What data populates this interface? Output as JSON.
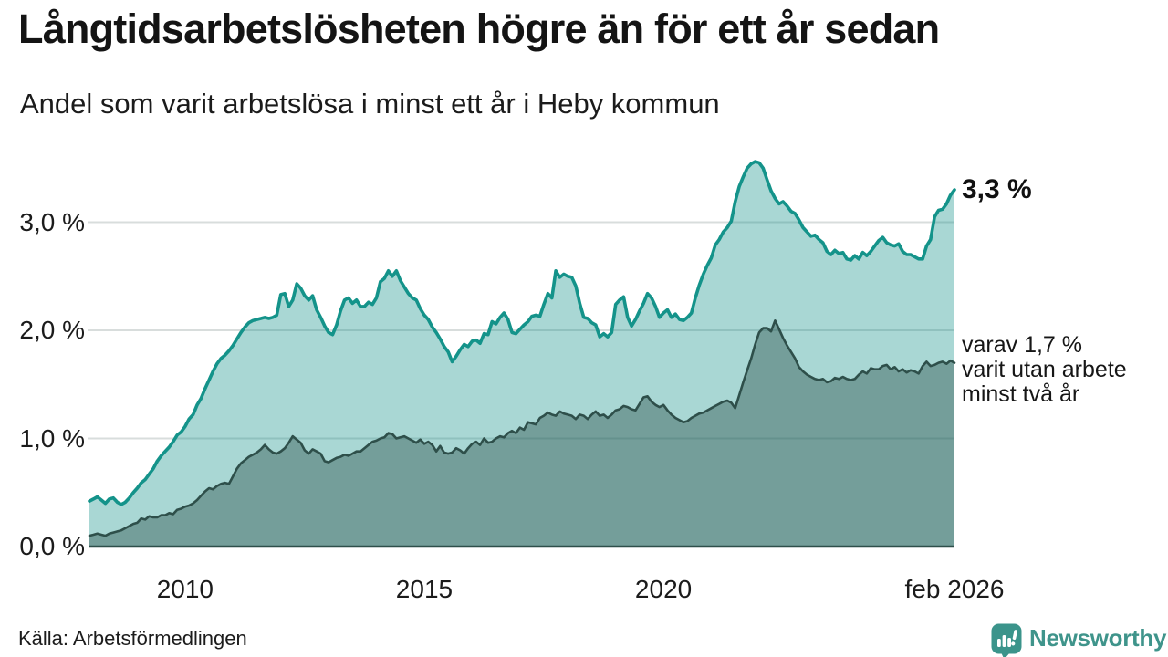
{
  "header": {
    "title": "Långtidsarbetslösheten högre än för ett år sedan",
    "subtitle": "Andel som varit arbetslösa i minst ett år i Heby kommun"
  },
  "annotations": {
    "latest_value": "3,3 %",
    "secondary_lines": [
      "varav 1,7 %",
      "varit utan arbete",
      "minst två år"
    ]
  },
  "footer": {
    "source": "Källa: Arbetsförmedlingen",
    "brand": "Newsworthy"
  },
  "colors": {
    "line_1plus": "#14938A",
    "fill_1plus": "rgba(21,147,138,0.37)",
    "line_2plus": "#2E4F4A",
    "fill_2plus": "rgba(44,78,73,0.42)",
    "gridline": "#D8DDDC",
    "baseline": "#2E4F4A",
    "brand_teal": "#3B948B",
    "text": "#141414"
  },
  "chart_data": {
    "type": "area",
    "title": "Långtidsarbetslösheten högre än för ett år sedan",
    "subtitle": "Andel som varit arbetslösa i minst ett år i Heby kommun",
    "x_monthly_start": "2008-01",
    "x_monthly_end": "2026-02",
    "ylim": [
      0,
      3.7
    ],
    "grid": "horizontal",
    "legend_position": "none",
    "y_ticks": [
      {
        "value": 0,
        "label": "0,0 %"
      },
      {
        "value": 1,
        "label": "1,0 %"
      },
      {
        "value": 2,
        "label": "2,0 %"
      },
      {
        "value": 3,
        "label": "3,0 %"
      }
    ],
    "x_ticks": [
      {
        "month_index": 24,
        "label": "2010"
      },
      {
        "month_index": 84,
        "label": "2015"
      },
      {
        "month_index": 144,
        "label": "2020"
      },
      {
        "month_index": 217,
        "label": "feb 2026"
      }
    ],
    "series": [
      {
        "name": "Arbetslösa minst ett år",
        "last_value_label": "3,3 %",
        "values": [
          0.42,
          0.44,
          0.46,
          0.43,
          0.4,
          0.44,
          0.45,
          0.41,
          0.39,
          0.41,
          0.45,
          0.5,
          0.54,
          0.59,
          0.62,
          0.67,
          0.72,
          0.79,
          0.84,
          0.88,
          0.92,
          0.97,
          1.03,
          1.06,
          1.11,
          1.18,
          1.22,
          1.31,
          1.37,
          1.46,
          1.54,
          1.62,
          1.69,
          1.74,
          1.77,
          1.81,
          1.86,
          1.92,
          1.98,
          2.03,
          2.07,
          2.09,
          2.1,
          2.11,
          2.12,
          2.11,
          2.12,
          2.14,
          2.33,
          2.34,
          2.22,
          2.28,
          2.43,
          2.39,
          2.32,
          2.28,
          2.32,
          2.19,
          2.12,
          2.04,
          1.98,
          1.96,
          2.05,
          2.18,
          2.28,
          2.3,
          2.25,
          2.28,
          2.22,
          2.22,
          2.26,
          2.24,
          2.3,
          2.45,
          2.48,
          2.55,
          2.5,
          2.55,
          2.46,
          2.4,
          2.34,
          2.3,
          2.28,
          2.2,
          2.14,
          2.1,
          2.03,
          1.98,
          1.92,
          1.85,
          1.8,
          1.71,
          1.76,
          1.82,
          1.87,
          1.85,
          1.9,
          1.91,
          1.88,
          1.97,
          1.96,
          2.08,
          2.06,
          2.12,
          2.16,
          2.1,
          1.98,
          1.97,
          2.01,
          2.05,
          2.08,
          2.13,
          2.14,
          2.13,
          2.24,
          2.34,
          2.3,
          2.55,
          2.49,
          2.52,
          2.5,
          2.49,
          2.41,
          2.25,
          2.12,
          2.11,
          2.07,
          2.05,
          1.94,
          1.97,
          1.94,
          1.98,
          2.24,
          2.28,
          2.31,
          2.12,
          2.04,
          2.1,
          2.18,
          2.25,
          2.34,
          2.3,
          2.22,
          2.12,
          2.16,
          2.19,
          2.12,
          2.15,
          2.1,
          2.09,
          2.12,
          2.16,
          2.3,
          2.42,
          2.52,
          2.6,
          2.67,
          2.79,
          2.84,
          2.91,
          2.95,
          3.01,
          3.19,
          3.33,
          3.42,
          3.5,
          3.54,
          3.56,
          3.55,
          3.5,
          3.39,
          3.29,
          3.22,
          3.17,
          3.19,
          3.15,
          3.1,
          3.08,
          3.02,
          2.95,
          2.91,
          2.87,
          2.88,
          2.84,
          2.81,
          2.73,
          2.7,
          2.74,
          2.71,
          2.72,
          2.66,
          2.65,
          2.69,
          2.66,
          2.72,
          2.69,
          2.73,
          2.78,
          2.83,
          2.86,
          2.81,
          2.79,
          2.78,
          2.8,
          2.73,
          2.7,
          2.7,
          2.68,
          2.66,
          2.66,
          2.78,
          2.84,
          3.05,
          3.11,
          3.12,
          3.17,
          3.25,
          3.3
        ]
      },
      {
        "name": "Arbetslösa minst två år",
        "last_value_label": "1,7 %",
        "values": [
          0.1,
          0.11,
          0.12,
          0.11,
          0.1,
          0.12,
          0.13,
          0.14,
          0.15,
          0.17,
          0.19,
          0.21,
          0.22,
          0.26,
          0.25,
          0.28,
          0.27,
          0.27,
          0.29,
          0.29,
          0.31,
          0.3,
          0.34,
          0.35,
          0.37,
          0.38,
          0.4,
          0.43,
          0.47,
          0.51,
          0.54,
          0.53,
          0.56,
          0.58,
          0.59,
          0.58,
          0.65,
          0.72,
          0.77,
          0.8,
          0.83,
          0.85,
          0.87,
          0.9,
          0.94,
          0.9,
          0.87,
          0.86,
          0.88,
          0.91,
          0.96,
          1.02,
          0.99,
          0.96,
          0.89,
          0.86,
          0.9,
          0.88,
          0.86,
          0.79,
          0.78,
          0.8,
          0.82,
          0.83,
          0.85,
          0.84,
          0.86,
          0.88,
          0.88,
          0.91,
          0.94,
          0.97,
          0.98,
          1.0,
          1.01,
          1.05,
          1.04,
          1.0,
          1.01,
          1.02,
          1.0,
          0.98,
          0.96,
          0.99,
          0.95,
          0.97,
          0.94,
          0.88,
          0.93,
          0.87,
          0.86,
          0.87,
          0.91,
          0.89,
          0.86,
          0.91,
          0.95,
          0.97,
          0.94,
          1.0,
          0.96,
          0.97,
          1.0,
          1.02,
          1.01,
          1.05,
          1.07,
          1.05,
          1.1,
          1.08,
          1.15,
          1.14,
          1.13,
          1.19,
          1.21,
          1.24,
          1.22,
          1.21,
          1.25,
          1.23,
          1.22,
          1.21,
          1.18,
          1.22,
          1.21,
          1.18,
          1.22,
          1.25,
          1.21,
          1.22,
          1.19,
          1.22,
          1.26,
          1.27,
          1.3,
          1.29,
          1.27,
          1.26,
          1.32,
          1.38,
          1.39,
          1.34,
          1.31,
          1.29,
          1.31,
          1.26,
          1.22,
          1.19,
          1.17,
          1.15,
          1.16,
          1.19,
          1.21,
          1.23,
          1.24,
          1.26,
          1.28,
          1.3,
          1.32,
          1.34,
          1.35,
          1.33,
          1.28,
          1.4,
          1.52,
          1.63,
          1.74,
          1.87,
          1.98,
          2.02,
          2.02,
          1.99,
          2.09,
          2.01,
          1.93,
          1.86,
          1.8,
          1.74,
          1.66,
          1.62,
          1.59,
          1.57,
          1.55,
          1.54,
          1.55,
          1.52,
          1.53,
          1.56,
          1.55,
          1.57,
          1.55,
          1.54,
          1.55,
          1.59,
          1.62,
          1.6,
          1.65,
          1.64,
          1.64,
          1.67,
          1.68,
          1.64,
          1.66,
          1.62,
          1.64,
          1.61,
          1.63,
          1.62,
          1.6,
          1.67,
          1.71,
          1.67,
          1.68,
          1.7,
          1.71,
          1.69,
          1.72,
          1.7
        ]
      }
    ]
  }
}
